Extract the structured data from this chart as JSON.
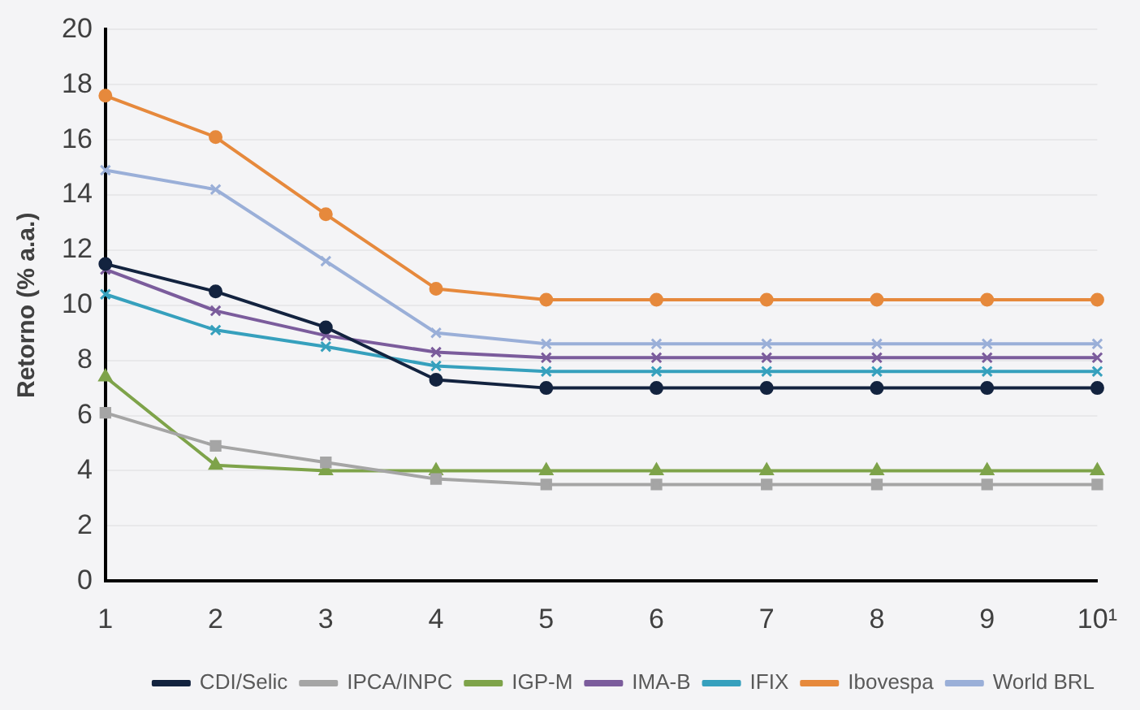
{
  "chart_data": {
    "type": "line",
    "ylabel": "Retorno (% a.a.)",
    "categories": [
      "1",
      "2",
      "3",
      "4",
      "5",
      "6",
      "7",
      "8",
      "9",
      "10¹"
    ],
    "ylim": [
      0,
      20
    ],
    "yticks": [
      0,
      2,
      4,
      6,
      8,
      10,
      12,
      14,
      16,
      18,
      20
    ],
    "grid": "y",
    "legend": "bottom",
    "line_style": "solid",
    "series": [
      {
        "name": "CDI/Selic",
        "color": "#13233f",
        "marker": "circle",
        "values": [
          11.5,
          10.5,
          9.2,
          7.3,
          7.0,
          7.0,
          7.0,
          7.0,
          7.0,
          7.0
        ]
      },
      {
        "name": "IPCA/INPC",
        "color": "#a5a5a5",
        "marker": "square",
        "values": [
          6.1,
          4.9,
          4.3,
          3.7,
          3.5,
          3.5,
          3.5,
          3.5,
          3.5,
          3.5
        ]
      },
      {
        "name": "IGP-M",
        "color": "#7ea34a",
        "marker": "triangle",
        "values": [
          7.4,
          4.2,
          4.0,
          4.0,
          4.0,
          4.0,
          4.0,
          4.0,
          4.0,
          4.0
        ]
      },
      {
        "name": "IMA-B",
        "color": "#7b5c9c",
        "marker": "cross",
        "values": [
          11.3,
          9.8,
          8.9,
          8.3,
          8.1,
          8.1,
          8.1,
          8.1,
          8.1,
          8.1
        ]
      },
      {
        "name": "IFIX",
        "color": "#36a0bd",
        "marker": "cross",
        "values": [
          10.4,
          9.1,
          8.5,
          7.8,
          7.6,
          7.6,
          7.6,
          7.6,
          7.6,
          7.6
        ]
      },
      {
        "name": "Ibovespa",
        "color": "#e6893c",
        "marker": "circle",
        "values": [
          17.6,
          16.1,
          13.3,
          10.6,
          10.2,
          10.2,
          10.2,
          10.2,
          10.2,
          10.2
        ]
      },
      {
        "name": "World BRL",
        "color": "#9aafd8",
        "marker": "cross",
        "values": [
          14.9,
          14.2,
          11.6,
          9.0,
          8.6,
          8.6,
          8.6,
          8.6,
          8.6,
          8.6
        ]
      }
    ]
  }
}
